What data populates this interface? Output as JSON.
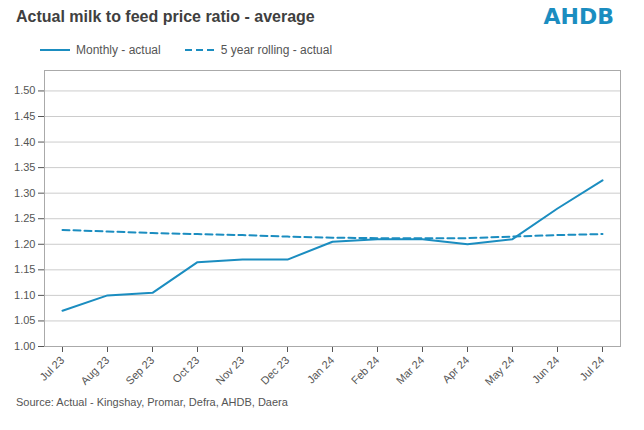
{
  "chart_data": {
    "type": "line",
    "title": "Actual milk to feed price ratio - average",
    "caption": "Source: Actual - Kingshay, Promar, Defra, AHDB, Daera",
    "annotations": [
      "AHDB"
    ],
    "categories": [
      "Jul 23",
      "Aug 23",
      "Sep 23",
      "Oct 23",
      "Nov 23",
      "Dec 23",
      "Jan 24",
      "Feb 24",
      "Mar 24",
      "Apr 24",
      "May 24",
      "Jun 24",
      "Jul 24"
    ],
    "series": [
      {
        "name": "Monthly - actual",
        "color": "#1b8dc0",
        "line_style": "solid",
        "values": [
          1.07,
          1.1,
          1.105,
          1.165,
          1.17,
          1.17,
          1.205,
          1.21,
          1.21,
          1.2,
          1.21,
          1.27,
          1.325
        ]
      },
      {
        "name": "5 year rolling - actual",
        "color": "#1b8dc0",
        "line_style": "dashed",
        "values": [
          1.228,
          1.225,
          1.222,
          1.22,
          1.218,
          1.215,
          1.213,
          1.212,
          1.212,
          1.212,
          1.215,
          1.218,
          1.22
        ]
      }
    ],
    "ylim": [
      1.0,
      1.54
    ],
    "yticks": [
      {
        "value": 1.0,
        "label": "1.00"
      },
      1.05,
      {
        "value": 1.1,
        "label": "1.10"
      },
      1.15,
      {
        "value": 1.2,
        "label": "1.20"
      },
      1.25,
      {
        "value": 1.3,
        "label": "1.30"
      },
      1.35,
      {
        "value": 1.4,
        "label": "1.40"
      },
      1.45,
      {
        "value": 1.5,
        "label": "1.50"
      }
    ],
    "grid": true,
    "legend": "top-left"
  }
}
